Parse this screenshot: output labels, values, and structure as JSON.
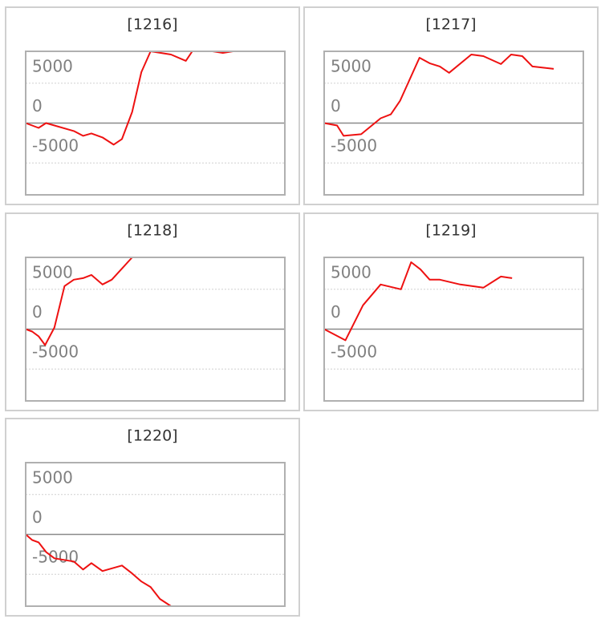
{
  "chart_data": [
    {
      "type": "line",
      "title": "[1216]",
      "ylim": [
        -9000,
        9000
      ],
      "yticks": [
        -5000,
        0,
        5000
      ],
      "xlim": [
        0,
        28
      ],
      "color": "#ee1111",
      "x": [
        0,
        1.4,
        2.2,
        5.2,
        6.2,
        7.1,
        8.3,
        9.5,
        10.4,
        11.5,
        12.5,
        13.5,
        15.7,
        17.3,
        18,
        20.2,
        21.3,
        22.4,
        24.8
      ],
      "values": [
        0,
        -600,
        0,
        -1000,
        -1600,
        -1300,
        -1800,
        -2700,
        -2000,
        1400,
        6400,
        9000,
        8600,
        7800,
        9000,
        9000,
        8800,
        9000,
        9000
      ]
    },
    {
      "type": "line",
      "title": "[1217]",
      "ylim": [
        -9000,
        9000
      ],
      "yticks": [
        -5000,
        0,
        5000
      ],
      "xlim": [
        0,
        28
      ],
      "color": "#ee1111",
      "x": [
        0,
        1.4,
        2.1,
        4,
        6.1,
        7.2,
        8.2,
        10.3,
        11.4,
        12.5,
        13.5,
        15.9,
        17.2,
        19.1,
        20.2,
        21.4,
        22.5,
        24.8
      ],
      "values": [
        0,
        -300,
        -1600,
        -1400,
        600,
        1100,
        2800,
        8200,
        7500,
        7100,
        6300,
        8600,
        8400,
        7400,
        8600,
        8400,
        7100,
        6800
      ]
    },
    {
      "type": "line",
      "title": "[1218]",
      "ylim": [
        -9000,
        9000
      ],
      "yticks": [
        -5000,
        0,
        5000
      ],
      "xlim": [
        0,
        28
      ],
      "color": "#ee1111",
      "x": [
        0,
        0.7,
        1.4,
        2.1,
        3.1,
        4.2,
        5.2,
        6.2,
        7.1,
        8.3,
        9.3,
        10.4,
        11.5,
        22.4
      ],
      "values": [
        0,
        -300,
        -900,
        -2000,
        200,
        5400,
        6200,
        6400,
        6800,
        5600,
        6200,
        7600,
        9000,
        9000
      ]
    },
    {
      "type": "line",
      "title": "[1219]",
      "ylim": [
        -9000,
        9000
      ],
      "yticks": [
        -5000,
        0,
        5000
      ],
      "xlim": [
        0,
        28
      ],
      "color": "#ee1111",
      "x": [
        0,
        2.3,
        4.2,
        6.1,
        8.3,
        9.4,
        10.4,
        11.4,
        12.5,
        14.7,
        17.2,
        19.1,
        20.3
      ],
      "values": [
        0,
        -1400,
        3000,
        5600,
        5000,
        8400,
        7500,
        6200,
        6200,
        5600,
        5200,
        6600,
        6400
      ]
    },
    {
      "type": "line",
      "title": "[1220]",
      "ylim": [
        -9000,
        9000
      ],
      "yticks": [
        -5000,
        0,
        5000
      ],
      "xlim": [
        0,
        28
      ],
      "color": "#ee1111",
      "x": [
        0,
        0.7,
        1.4,
        2.2,
        3.1,
        5.2,
        6.2,
        7.1,
        8.3,
        10.4,
        11.5,
        12.5,
        13.5,
        14.5,
        15.7,
        24.8
      ],
      "values": [
        0,
        -700,
        -1000,
        -2200,
        -3000,
        -3400,
        -4400,
        -3600,
        -4600,
        -3900,
        -4900,
        -5900,
        -6600,
        -8100,
        -9000,
        -9000
      ]
    }
  ]
}
